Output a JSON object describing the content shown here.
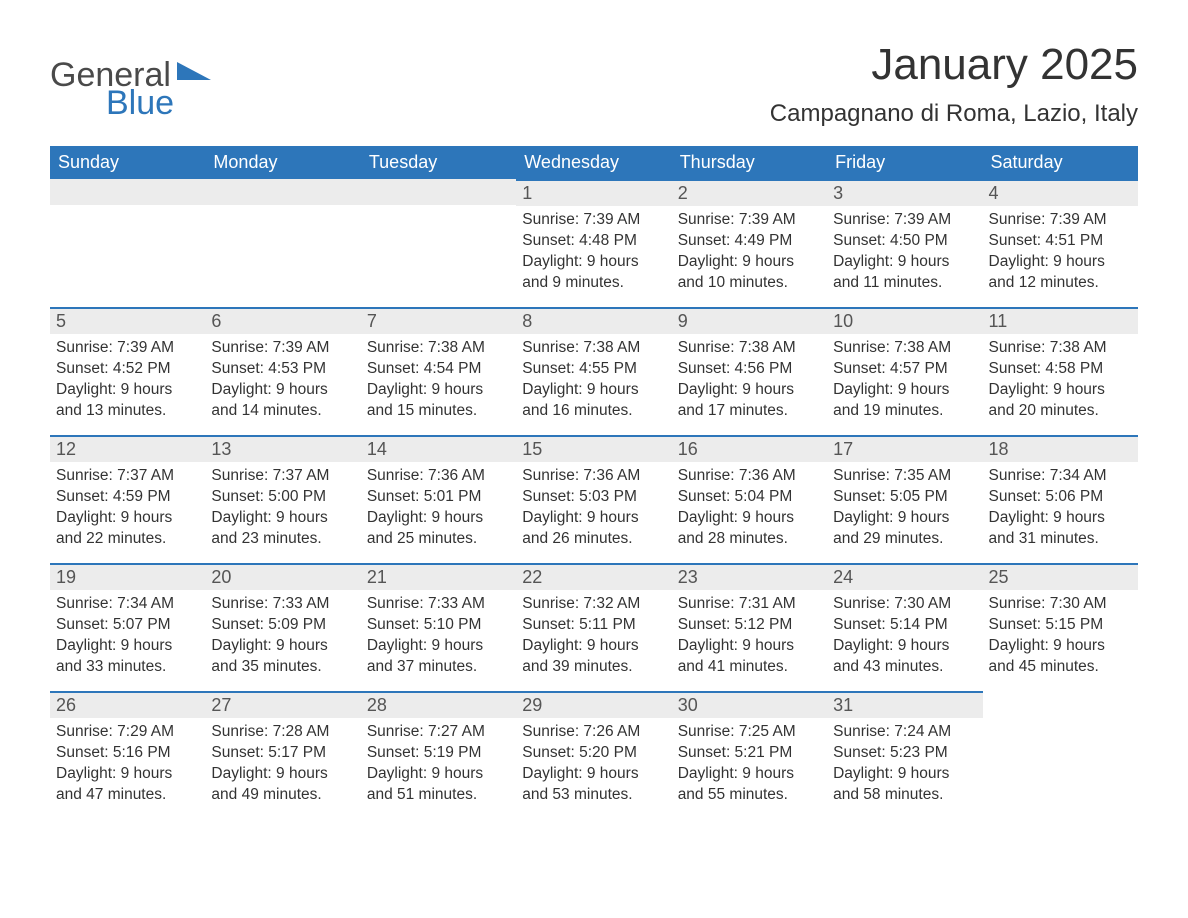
{
  "logo": {
    "word1": "General",
    "word2": "Blue"
  },
  "colors": {
    "header_bg": "#2d76ba",
    "header_text": "#ffffff",
    "daynum_bg": "#ececec",
    "rule": "#2d76ba",
    "text": "#333333",
    "logo_blue": "#2d76ba",
    "logo_gray": "#4a4a4a",
    "page_bg": "#ffffff"
  },
  "title": "January 2025",
  "location": "Campagnano di Roma, Lazio, Italy",
  "weekdays": [
    "Sunday",
    "Monday",
    "Tuesday",
    "Wednesday",
    "Thursday",
    "Friday",
    "Saturday"
  ],
  "weeks": [
    [
      null,
      null,
      null,
      {
        "n": "1",
        "sunrise": "7:39 AM",
        "sunset": "4:48 PM",
        "dl1": "9 hours",
        "dl2": "and 9 minutes."
      },
      {
        "n": "2",
        "sunrise": "7:39 AM",
        "sunset": "4:49 PM",
        "dl1": "9 hours",
        "dl2": "and 10 minutes."
      },
      {
        "n": "3",
        "sunrise": "7:39 AM",
        "sunset": "4:50 PM",
        "dl1": "9 hours",
        "dl2": "and 11 minutes."
      },
      {
        "n": "4",
        "sunrise": "7:39 AM",
        "sunset": "4:51 PM",
        "dl1": "9 hours",
        "dl2": "and 12 minutes."
      }
    ],
    [
      {
        "n": "5",
        "sunrise": "7:39 AM",
        "sunset": "4:52 PM",
        "dl1": "9 hours",
        "dl2": "and 13 minutes."
      },
      {
        "n": "6",
        "sunrise": "7:39 AM",
        "sunset": "4:53 PM",
        "dl1": "9 hours",
        "dl2": "and 14 minutes."
      },
      {
        "n": "7",
        "sunrise": "7:38 AM",
        "sunset": "4:54 PM",
        "dl1": "9 hours",
        "dl2": "and 15 minutes."
      },
      {
        "n": "8",
        "sunrise": "7:38 AM",
        "sunset": "4:55 PM",
        "dl1": "9 hours",
        "dl2": "and 16 minutes."
      },
      {
        "n": "9",
        "sunrise": "7:38 AM",
        "sunset": "4:56 PM",
        "dl1": "9 hours",
        "dl2": "and 17 minutes."
      },
      {
        "n": "10",
        "sunrise": "7:38 AM",
        "sunset": "4:57 PM",
        "dl1": "9 hours",
        "dl2": "and 19 minutes."
      },
      {
        "n": "11",
        "sunrise": "7:38 AM",
        "sunset": "4:58 PM",
        "dl1": "9 hours",
        "dl2": "and 20 minutes."
      }
    ],
    [
      {
        "n": "12",
        "sunrise": "7:37 AM",
        "sunset": "4:59 PM",
        "dl1": "9 hours",
        "dl2": "and 22 minutes."
      },
      {
        "n": "13",
        "sunrise": "7:37 AM",
        "sunset": "5:00 PM",
        "dl1": "9 hours",
        "dl2": "and 23 minutes."
      },
      {
        "n": "14",
        "sunrise": "7:36 AM",
        "sunset": "5:01 PM",
        "dl1": "9 hours",
        "dl2": "and 25 minutes."
      },
      {
        "n": "15",
        "sunrise": "7:36 AM",
        "sunset": "5:03 PM",
        "dl1": "9 hours",
        "dl2": "and 26 minutes."
      },
      {
        "n": "16",
        "sunrise": "7:36 AM",
        "sunset": "5:04 PM",
        "dl1": "9 hours",
        "dl2": "and 28 minutes."
      },
      {
        "n": "17",
        "sunrise": "7:35 AM",
        "sunset": "5:05 PM",
        "dl1": "9 hours",
        "dl2": "and 29 minutes."
      },
      {
        "n": "18",
        "sunrise": "7:34 AM",
        "sunset": "5:06 PM",
        "dl1": "9 hours",
        "dl2": "and 31 minutes."
      }
    ],
    [
      {
        "n": "19",
        "sunrise": "7:34 AM",
        "sunset": "5:07 PM",
        "dl1": "9 hours",
        "dl2": "and 33 minutes."
      },
      {
        "n": "20",
        "sunrise": "7:33 AM",
        "sunset": "5:09 PM",
        "dl1": "9 hours",
        "dl2": "and 35 minutes."
      },
      {
        "n": "21",
        "sunrise": "7:33 AM",
        "sunset": "5:10 PM",
        "dl1": "9 hours",
        "dl2": "and 37 minutes."
      },
      {
        "n": "22",
        "sunrise": "7:32 AM",
        "sunset": "5:11 PM",
        "dl1": "9 hours",
        "dl2": "and 39 minutes."
      },
      {
        "n": "23",
        "sunrise": "7:31 AM",
        "sunset": "5:12 PM",
        "dl1": "9 hours",
        "dl2": "and 41 minutes."
      },
      {
        "n": "24",
        "sunrise": "7:30 AM",
        "sunset": "5:14 PM",
        "dl1": "9 hours",
        "dl2": "and 43 minutes."
      },
      {
        "n": "25",
        "sunrise": "7:30 AM",
        "sunset": "5:15 PM",
        "dl1": "9 hours",
        "dl2": "and 45 minutes."
      }
    ],
    [
      {
        "n": "26",
        "sunrise": "7:29 AM",
        "sunset": "5:16 PM",
        "dl1": "9 hours",
        "dl2": "and 47 minutes."
      },
      {
        "n": "27",
        "sunrise": "7:28 AM",
        "sunset": "5:17 PM",
        "dl1": "9 hours",
        "dl2": "and 49 minutes."
      },
      {
        "n": "28",
        "sunrise": "7:27 AM",
        "sunset": "5:19 PM",
        "dl1": "9 hours",
        "dl2": "and 51 minutes."
      },
      {
        "n": "29",
        "sunrise": "7:26 AM",
        "sunset": "5:20 PM",
        "dl1": "9 hours",
        "dl2": "and 53 minutes."
      },
      {
        "n": "30",
        "sunrise": "7:25 AM",
        "sunset": "5:21 PM",
        "dl1": "9 hours",
        "dl2": "and 55 minutes."
      },
      {
        "n": "31",
        "sunrise": "7:24 AM",
        "sunset": "5:23 PM",
        "dl1": "9 hours",
        "dl2": "and 58 minutes."
      },
      null
    ]
  ],
  "labels": {
    "sunrise": "Sunrise: ",
    "sunset": "Sunset: ",
    "daylight": "Daylight: "
  }
}
